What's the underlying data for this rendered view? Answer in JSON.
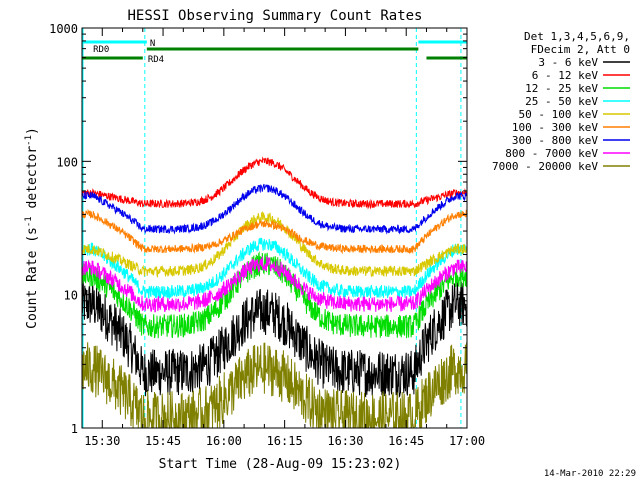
{
  "chart_data": {
    "type": "line",
    "title": "HESSI Observing Summary Count Rates",
    "xlabel": "Start Time (28-Aug-09 15:23:02)",
    "ylabel_main": "Count Rate (s",
    "ylabel_sup1": "-1",
    "ylabel_mid": " detector",
    "ylabel_sup2": "-1",
    "ylabel_end": ")",
    "yscale": "log",
    "ylim": [
      1,
      1000
    ],
    "xlim_minutes": [
      25,
      120
    ],
    "x_ticks": [
      {
        "label": "15:30",
        "minute": 30
      },
      {
        "label": "15:45",
        "minute": 45
      },
      {
        "label": "16:00",
        "minute": 60
      },
      {
        "label": "16:15",
        "minute": 75
      },
      {
        "label": "16:30",
        "minute": 90
      },
      {
        "label": "16:45",
        "minute": 105
      },
      {
        "label": "17:00",
        "minute": 120
      }
    ],
    "y_ticks": [
      {
        "label": "1",
        "value": 1
      },
      {
        "label": "10",
        "value": 10
      },
      {
        "label": "100",
        "value": 100
      },
      {
        "label": "1000",
        "value": 1000
      }
    ],
    "legend_header": [
      "Det 1,3,4,5,6,9,",
      "FDecim 2, Att 0"
    ],
    "legend_placement": "right",
    "series": [
      {
        "name": "3 - 6 keV",
        "color": "#000000",
        "base": 2.6,
        "peak": 7.5,
        "pre": 8.5,
        "noise": 0.18
      },
      {
        "name": "6 - 12 keV",
        "color": "#ff0000",
        "base": 48,
        "peak": 100,
        "pre": 58,
        "noise": 0.03
      },
      {
        "name": "12 - 25 keV",
        "color": "#00dd00",
        "base": 5.8,
        "peak": 17,
        "pre": 14,
        "noise": 0.09
      },
      {
        "name": "25 - 50 keV",
        "color": "#00ffff",
        "base": 10.5,
        "peak": 24,
        "pre": 22,
        "noise": 0.05
      },
      {
        "name": "50 - 100 keV",
        "color": "#d8c800",
        "base": 15,
        "peak": 38,
        "pre": 22,
        "noise": 0.04
      },
      {
        "name": "100 - 300 keV",
        "color": "#ff7f00",
        "base": 22,
        "peak": 34,
        "pre": 40,
        "noise": 0.03
      },
      {
        "name": "300 - 800 keV",
        "color": "#0000ee",
        "base": 31,
        "peak": 63,
        "pre": 55,
        "noise": 0.03
      },
      {
        "name": "800 - 7000 keV",
        "color": "#ff00ff",
        "base": 8.5,
        "peak": 17,
        "pre": 16,
        "noise": 0.06
      },
      {
        "name": "7000 - 20000 keV",
        "color": "#808000",
        "base": 1.2,
        "peak": 2.8,
        "pre": 2.8,
        "noise": 0.2
      }
    ],
    "flags": [
      {
        "label": "N",
        "color": "#00ffff",
        "segments": [
          [
            25,
            41
          ],
          [
            108,
            120
          ]
        ]
      },
      {
        "label": "RD0",
        "color": "#008000",
        "segments": [
          [
            41,
            108
          ]
        ]
      },
      {
        "label": "RD4",
        "color": "#008000",
        "segments": [
          [
            25,
            40
          ],
          [
            110,
            120
          ]
        ]
      }
    ],
    "vlines_minutes": [
      40.5,
      107.5,
      118.5
    ],
    "vlines_color": "#00ffff",
    "footer": "14-Mar-2010 22:29"
  }
}
